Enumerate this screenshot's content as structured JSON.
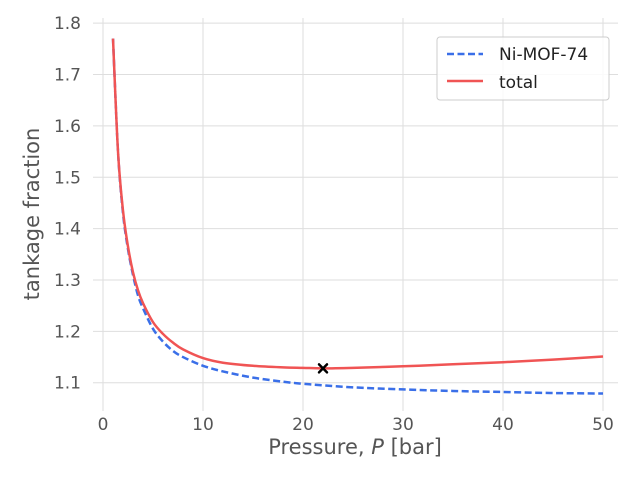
{
  "chart_data": {
    "type": "line",
    "title": "",
    "xlabel_prefix": "Pressure, ",
    "xlabel_var": "P",
    "xlabel_suffix": " [bar]",
    "ylabel": "tankage fraction",
    "xlim": [
      -1,
      51.5
    ],
    "ylim": [
      1.045,
      1.81
    ],
    "xticks": [
      0,
      10,
      20,
      30,
      40,
      50
    ],
    "yticks": [
      1.1,
      1.2,
      1.3,
      1.4,
      1.5,
      1.6,
      1.7,
      1.8
    ],
    "xtick_labels": [
      "0",
      "10",
      "20",
      "30",
      "40",
      "50"
    ],
    "ytick_labels": [
      "1.1",
      "1.2",
      "1.3",
      "1.4",
      "1.5",
      "1.6",
      "1.7",
      "1.8"
    ],
    "grid": true,
    "legend_position": "top-right",
    "series": [
      {
        "name": "Ni-MOF-74",
        "style": "dashed",
        "color": "#3a6fe8",
        "x": [
          1,
          1.5,
          2,
          2.5,
          3,
          3.5,
          4,
          5,
          6,
          7,
          8,
          10,
          12,
          15,
          18,
          20,
          22,
          25,
          30,
          35,
          40,
          45,
          50
        ],
        "y": [
          1.77,
          1.55,
          1.43,
          1.36,
          1.31,
          1.27,
          1.245,
          1.205,
          1.18,
          1.162,
          1.15,
          1.133,
          1.122,
          1.11,
          1.102,
          1.098,
          1.095,
          1.091,
          1.087,
          1.084,
          1.082,
          1.08,
          1.079
        ]
      },
      {
        "name": "total",
        "style": "solid",
        "color": "#f05454",
        "x": [
          1,
          1.5,
          2,
          2.5,
          3,
          3.5,
          4,
          5,
          6,
          7,
          8,
          10,
          12,
          15,
          18,
          20,
          22,
          25,
          30,
          35,
          40,
          45,
          50
        ],
        "y": [
          1.77,
          1.55,
          1.435,
          1.365,
          1.315,
          1.28,
          1.255,
          1.218,
          1.195,
          1.178,
          1.165,
          1.148,
          1.139,
          1.133,
          1.13,
          1.129,
          1.128,
          1.129,
          1.132,
          1.136,
          1.14,
          1.145,
          1.151
        ]
      }
    ],
    "marker": {
      "name": "optimum",
      "x": 22,
      "y": 1.128,
      "symbol": "x",
      "color": "#000000"
    }
  }
}
